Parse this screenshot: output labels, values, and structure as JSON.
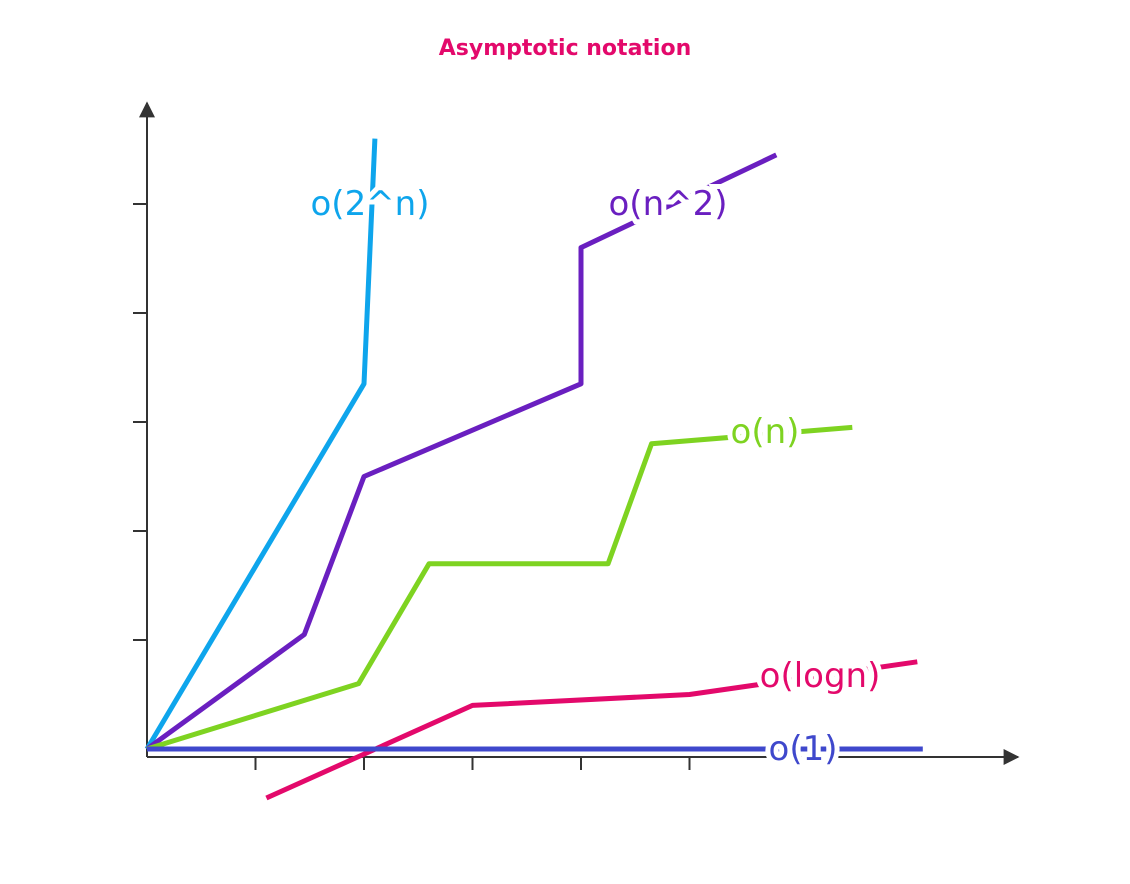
{
  "chart_data": {
    "type": "line",
    "title": "Asymptotic notation",
    "xlabel": "",
    "ylabel": "",
    "xlim": [
      0,
      8
    ],
    "ylim": [
      0,
      6
    ],
    "grid": false,
    "series": [
      {
        "name": "o(2^n)",
        "color": "#0ea5ec",
        "points": [
          [
            0,
            0
          ],
          [
            2,
            3.35
          ],
          [
            2.1,
            5.6
          ]
        ]
      },
      {
        "name": "o(n^2)",
        "color": "#6a1fc0",
        "points": [
          [
            0,
            0
          ],
          [
            1.45,
            1.05
          ],
          [
            2,
            2.5
          ],
          [
            4,
            3.35
          ],
          [
            4,
            4.6
          ],
          [
            5.8,
            5.45
          ]
        ]
      },
      {
        "name": "o(n)",
        "color": "#7ed321",
        "points": [
          [
            0,
            0
          ],
          [
            1.95,
            0.6
          ],
          [
            2.6,
            1.7
          ],
          [
            4.25,
            1.7
          ],
          [
            4.65,
            2.8
          ],
          [
            6.5,
            2.95
          ]
        ]
      },
      {
        "name": "o(logn)",
        "color": "#e3096b",
        "points": [
          [
            1.1,
            -0.45
          ],
          [
            3,
            0.4
          ],
          [
            5,
            0.5
          ],
          [
            7.1,
            0.8
          ]
        ]
      },
      {
        "name": "o(1)",
        "color": "#3f48cc",
        "points": [
          [
            0,
            0
          ],
          [
            7.15,
            0
          ]
        ]
      }
    ]
  }
}
